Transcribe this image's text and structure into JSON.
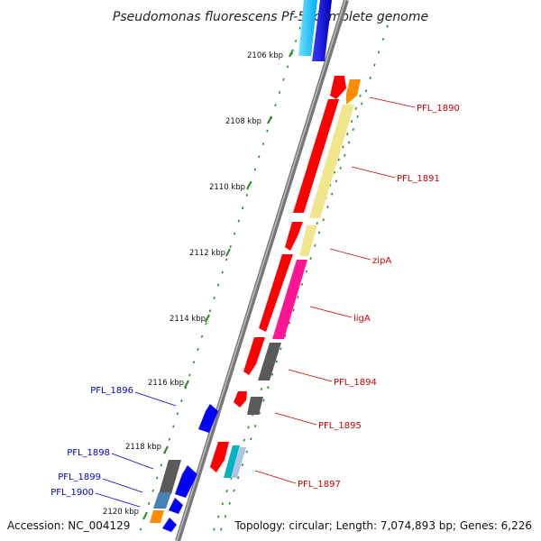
{
  "title": "Pseudomonas fluorescens Pf-5, complete genome",
  "footer": {
    "accession": "Accession: NC_004129",
    "topology": "Topology: circular; Length: 7,074,893 bp; Genes: 6,226"
  },
  "colors": {
    "forward_label": "#cc0000",
    "reverse_label": "#0000cc",
    "backbone": "#888888",
    "tick": "#2a8a2a",
    "red": "#ff0000",
    "orange": "#ff8c00",
    "khaki": "#f0e68c",
    "pink": "#ff1493",
    "gray": "#555555",
    "blue": "#0000ff",
    "steel": "#4682b4",
    "cyan": "#00bfff",
    "teal": "#00b3c2"
  },
  "scale_labels": [
    "2106 kbp",
    "2108 kbp",
    "2110 kbp",
    "2112 kbp",
    "2114 kbp",
    "2116 kbp",
    "2118 kbp",
    "2120 kbp"
  ],
  "forward_labels": [
    "PFL_1890",
    "PFL_1891",
    "zipA",
    "ligA",
    "PFL_1894",
    "PFL_1895",
    "PFL_1897"
  ],
  "reverse_labels": [
    "PFL_1896",
    "PFL_1898",
    "PFL_1899",
    "PFL_1900"
  ]
}
